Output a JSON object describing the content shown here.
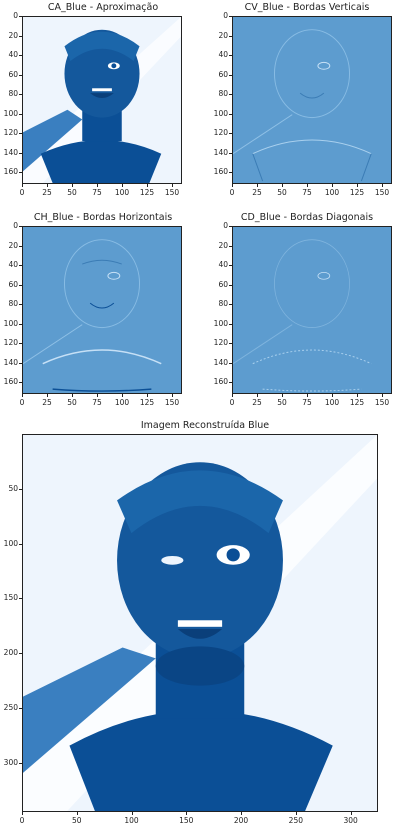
{
  "panels": [
    {
      "title": "CA_Blue - Aproximação",
      "type": "approx"
    },
    {
      "title": "CV_Blue - Bordas Verticais",
      "type": "edge"
    },
    {
      "title": "CH_Blue - Bordas Horizontais",
      "type": "edge"
    },
    {
      "title": "CD_Blue - Bordas Diagonais",
      "type": "edge"
    }
  ],
  "small_axes": {
    "x_ticks": [
      "0",
      "25",
      "50",
      "75",
      "100",
      "125",
      "150"
    ],
    "y_ticks": [
      "0",
      "20",
      "40",
      "60",
      "80",
      "100",
      "120",
      "140",
      "160"
    ]
  },
  "main": {
    "title": "Imagem Reconstruída Blue",
    "x_ticks": [
      "0",
      "50",
      "100",
      "150",
      "200",
      "250",
      "300"
    ],
    "y_ticks": [
      "50",
      "100",
      "150",
      "200",
      "250",
      "300"
    ]
  },
  "colors": {
    "dark_blue": "#0b4f96",
    "mid_blue": "#5d9ccf",
    "light_bg": "#eef5fd",
    "white": "#ffffff"
  }
}
